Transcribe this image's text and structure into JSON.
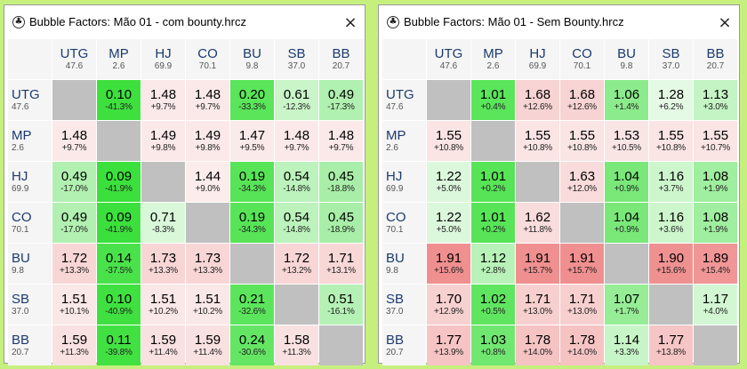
{
  "windows": [
    {
      "title": "Bubble Factors: Mão 01 - com bounty.hrcz",
      "close_label": "×",
      "icon": "club-icon",
      "columns": [
        {
          "name": "UTG",
          "stack": "47.6"
        },
        {
          "name": "MP",
          "stack": "2.6"
        },
        {
          "name": "HJ",
          "stack": "69.9"
        },
        {
          "name": "CO",
          "stack": "70.1"
        },
        {
          "name": "BU",
          "stack": "9.8"
        },
        {
          "name": "SB",
          "stack": "37.0"
        },
        {
          "name": "BB",
          "stack": "20.7"
        }
      ],
      "rows": [
        {
          "name": "UTG",
          "stack": "47.6",
          "cells": [
            null,
            {
              "v": "0.10",
              "p": "-41.3%",
              "c": "#3ee03e"
            },
            {
              "v": "1.48",
              "p": "+9.7%",
              "c": "#fbe9e9"
            },
            {
              "v": "1.48",
              "p": "+9.7%",
              "c": "#fbe9e9"
            },
            {
              "v": "0.20",
              "p": "-33.3%",
              "c": "#5ae55a"
            },
            {
              "v": "0.61",
              "p": "-12.3%",
              "c": "#c9f5c9"
            },
            {
              "v": "0.49",
              "p": "-17.3%",
              "c": "#b0f0b0"
            }
          ]
        },
        {
          "name": "MP",
          "stack": "2.6",
          "cells": [
            {
              "v": "1.48",
              "p": "+9.7%",
              "c": "#fbe9e9"
            },
            null,
            {
              "v": "1.49",
              "p": "+9.8%",
              "c": "#fbe8e8"
            },
            {
              "v": "1.49",
              "p": "+9.8%",
              "c": "#fbe8e8"
            },
            {
              "v": "1.47",
              "p": "+9.5%",
              "c": "#fbeaea"
            },
            {
              "v": "1.48",
              "p": "+9.7%",
              "c": "#fbe9e9"
            },
            {
              "v": "1.48",
              "p": "+9.7%",
              "c": "#fbe9e9"
            }
          ]
        },
        {
          "name": "HJ",
          "stack": "69.9",
          "cells": [
            {
              "v": "0.49",
              "p": "-17.0%",
              "c": "#b1f0b1"
            },
            {
              "v": "0.09",
              "p": "-41.9%",
              "c": "#3ce03c"
            },
            null,
            {
              "v": "1.44",
              "p": "+9.0%",
              "c": "#fcecec"
            },
            {
              "v": "0.19",
              "p": "-34.3%",
              "c": "#57e457"
            },
            {
              "v": "0.54",
              "p": "-14.8%",
              "c": "#bcf2bc"
            },
            {
              "v": "0.45",
              "p": "-18.8%",
              "c": "#a8eea8"
            }
          ]
        },
        {
          "name": "CO",
          "stack": "70.1",
          "cells": [
            {
              "v": "0.49",
              "p": "-17.0%",
              "c": "#b1f0b1"
            },
            {
              "v": "0.09",
              "p": "-41.9%",
              "c": "#3ce03c"
            },
            {
              "v": "0.71",
              "p": "-8.3%",
              "c": "#d9f8d9"
            },
            null,
            {
              "v": "0.19",
              "p": "-34.3%",
              "c": "#57e457"
            },
            {
              "v": "0.54",
              "p": "-14.8%",
              "c": "#bcf2bc"
            },
            {
              "v": "0.45",
              "p": "-18.9%",
              "c": "#a8eea8"
            }
          ]
        },
        {
          "name": "BU",
          "stack": "9.8",
          "cells": [
            {
              "v": "1.72",
              "p": "+13.3%",
              "c": "#f8d6d6"
            },
            {
              "v": "0.14",
              "p": "-37.5%",
              "c": "#4ae24a"
            },
            {
              "v": "1.73",
              "p": "+13.3%",
              "c": "#f8d6d6"
            },
            {
              "v": "1.73",
              "p": "+13.3%",
              "c": "#f8d6d6"
            },
            null,
            {
              "v": "1.72",
              "p": "+13.2%",
              "c": "#f8d6d6"
            },
            {
              "v": "1.71",
              "p": "+13.1%",
              "c": "#f8d7d7"
            }
          ]
        },
        {
          "name": "SB",
          "stack": "37.0",
          "cells": [
            {
              "v": "1.51",
              "p": "+10.1%",
              "c": "#fae7e7"
            },
            {
              "v": "0.10",
              "p": "-40.9%",
              "c": "#3fe03f"
            },
            {
              "v": "1.51",
              "p": "+10.2%",
              "c": "#fae7e7"
            },
            {
              "v": "1.51",
              "p": "+10.2%",
              "c": "#fae7e7"
            },
            {
              "v": "0.21",
              "p": "-32.6%",
              "c": "#5ce55c"
            },
            null,
            {
              "v": "0.51",
              "p": "-16.1%",
              "c": "#b5f1b5"
            }
          ]
        },
        {
          "name": "BB",
          "stack": "20.7",
          "cells": [
            {
              "v": "1.59",
              "p": "+11.3%",
              "c": "#f9e1e1"
            },
            {
              "v": "0.11",
              "p": "-39.8%",
              "c": "#42e142"
            },
            {
              "v": "1.59",
              "p": "+11.4%",
              "c": "#f9e1e1"
            },
            {
              "v": "1.59",
              "p": "+11.4%",
              "c": "#f9e1e1"
            },
            {
              "v": "0.24",
              "p": "-30.6%",
              "c": "#64e664"
            },
            {
              "v": "1.58",
              "p": "+11.3%",
              "c": "#f9e1e1"
            },
            null
          ]
        }
      ]
    },
    {
      "title": "Bubble Factors: Mão 01 - Sem Bounty.hrcz",
      "close_label": "×",
      "icon": "club-icon",
      "columns": [
        {
          "name": "UTG",
          "stack": "47.6"
        },
        {
          "name": "MP",
          "stack": "2.6"
        },
        {
          "name": "HJ",
          "stack": "69.9"
        },
        {
          "name": "CO",
          "stack": "70.1"
        },
        {
          "name": "BU",
          "stack": "9.8"
        },
        {
          "name": "SB",
          "stack": "37.0"
        },
        {
          "name": "BB",
          "stack": "20.7"
        }
      ],
      "rows": [
        {
          "name": "UTG",
          "stack": "47.6",
          "cells": [
            null,
            {
              "v": "1.01",
              "p": "+0.4%",
              "c": "#5ae55a"
            },
            {
              "v": "1.68",
              "p": "+12.6%",
              "c": "#f8d3d3"
            },
            {
              "v": "1.68",
              "p": "+12.6%",
              "c": "#f8d3d3"
            },
            {
              "v": "1.06",
              "p": "+1.4%",
              "c": "#8ceb8c"
            },
            {
              "v": "1.28",
              "p": "+6.2%",
              "c": "#e4fae4"
            },
            {
              "v": "1.13",
              "p": "+3.0%",
              "c": "#c4f4c4"
            }
          ]
        },
        {
          "name": "MP",
          "stack": "2.6",
          "cells": [
            {
              "v": "1.55",
              "p": "+10.8%",
              "c": "#fae4e4"
            },
            null,
            {
              "v": "1.55",
              "p": "+10.8%",
              "c": "#fae4e4"
            },
            {
              "v": "1.55",
              "p": "+10.8%",
              "c": "#fae4e4"
            },
            {
              "v": "1.53",
              "p": "+10.5%",
              "c": "#fae5e5"
            },
            {
              "v": "1.55",
              "p": "+10.8%",
              "c": "#fae4e4"
            },
            {
              "v": "1.55",
              "p": "+10.7%",
              "c": "#fae4e4"
            }
          ]
        },
        {
          "name": "HJ",
          "stack": "69.9",
          "cells": [
            {
              "v": "1.22",
              "p": "+5.0%",
              "c": "#dcf8dc"
            },
            {
              "v": "1.01",
              "p": "+0.2%",
              "c": "#57e457"
            },
            null,
            {
              "v": "1.63",
              "p": "+12.0%",
              "c": "#f9dbdb"
            },
            {
              "v": "1.04",
              "p": "+0.9%",
              "c": "#79e879"
            },
            {
              "v": "1.16",
              "p": "+3.7%",
              "c": "#cdf6cd"
            },
            {
              "v": "1.08",
              "p": "+1.9%",
              "c": "#a0ee9f"
            }
          ]
        },
        {
          "name": "CO",
          "stack": "70.1",
          "cells": [
            {
              "v": "1.22",
              "p": "+5.0%",
              "c": "#dcf8dc"
            },
            {
              "v": "1.01",
              "p": "+0.2%",
              "c": "#57e457"
            },
            {
              "v": "1.62",
              "p": "+11.8%",
              "c": "#f9dcdc"
            },
            null,
            {
              "v": "1.04",
              "p": "+0.9%",
              "c": "#79e879"
            },
            {
              "v": "1.16",
              "p": "+3.6%",
              "c": "#cdf6cd"
            },
            {
              "v": "1.08",
              "p": "+1.9%",
              "c": "#a0ee9f"
            }
          ]
        },
        {
          "name": "BU",
          "stack": "9.8",
          "cells": [
            {
              "v": "1.91",
              "p": "+15.6%",
              "c": "#f08f8f"
            },
            {
              "v": "1.12",
              "p": "+2.8%",
              "c": "#b8f2b8"
            },
            {
              "v": "1.91",
              "p": "+15.7%",
              "c": "#f08f8f"
            },
            {
              "v": "1.91",
              "p": "+15.7%",
              "c": "#f08f8f"
            },
            null,
            {
              "v": "1.90",
              "p": "+15.6%",
              "c": "#f09191"
            },
            {
              "v": "1.89",
              "p": "+15.4%",
              "c": "#f19696"
            }
          ]
        },
        {
          "name": "SB",
          "stack": "37.0",
          "cells": [
            {
              "v": "1.70",
              "p": "+12.9%",
              "c": "#f7d0d0"
            },
            {
              "v": "1.02",
              "p": "+0.5%",
              "c": "#60e560"
            },
            {
              "v": "1.71",
              "p": "+13.0%",
              "c": "#f7cfcf"
            },
            {
              "v": "1.71",
              "p": "+13.0%",
              "c": "#f7cfcf"
            },
            {
              "v": "1.07",
              "p": "+1.7%",
              "c": "#96ed96"
            },
            null,
            {
              "v": "1.17",
              "p": "+4.0%",
              "c": "#d2f7d2"
            }
          ]
        },
        {
          "name": "BB",
          "stack": "20.7",
          "cells": [
            {
              "v": "1.77",
              "p": "+13.9%",
              "c": "#f6c4c4"
            },
            {
              "v": "1.03",
              "p": "+0.8%",
              "c": "#70e770"
            },
            {
              "v": "1.78",
              "p": "+14.0%",
              "c": "#f6c3c3"
            },
            {
              "v": "1.78",
              "p": "+14.0%",
              "c": "#f6c3c3"
            },
            {
              "v": "1.14",
              "p": "+3.3%",
              "c": "#c8f5c8"
            },
            {
              "v": "1.77",
              "p": "+13.8%",
              "c": "#f6c5c5"
            },
            null
          ]
        }
      ]
    }
  ]
}
